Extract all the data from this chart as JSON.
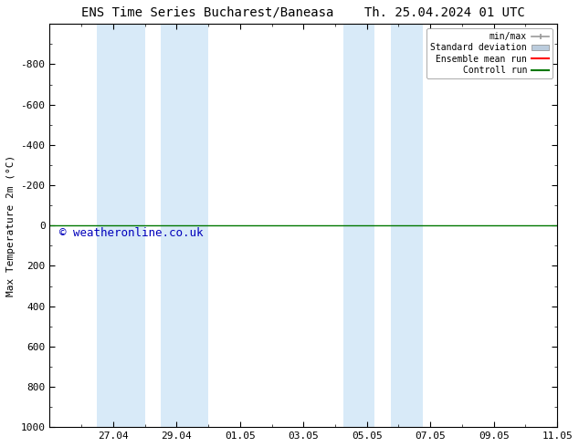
{
  "title_left": "ENS Time Series Bucharest/Baneasa",
  "title_right": "Th. 25.04.2024 01 UTC",
  "ylabel": "Max Temperature 2m (°C)",
  "watermark": "© weatheronline.co.uk",
  "ylim_top": -1000,
  "ylim_bottom": 1000,
  "yticks": [
    -800,
    -600,
    -400,
    -200,
    0,
    200,
    400,
    600,
    800,
    1000
  ],
  "xtick_labels": [
    "27.04",
    "29.04",
    "01.05",
    "03.05",
    "05.05",
    "07.05",
    "09.05",
    "11.05"
  ],
  "xtick_positions": [
    2,
    4,
    6,
    8,
    10,
    12,
    14,
    16
  ],
  "x_min": 0.0,
  "x_max": 16.0,
  "shaded_bands": [
    [
      1.5,
      3.0
    ],
    [
      3.5,
      5.0
    ],
    [
      9.25,
      10.25
    ],
    [
      10.75,
      11.75
    ]
  ],
  "horizontal_line_y": 0,
  "line_color_control": "#007700",
  "background_color": "#ffffff",
  "shade_color": "#d8eaf8",
  "legend_labels": [
    "min/max",
    "Standard deviation",
    "Ensemble mean run",
    "Controll run"
  ],
  "legend_colors": [
    "#999999",
    "#bbccdd",
    "#ff0000",
    "#007700"
  ],
  "title_fontsize": 10,
  "axis_fontsize": 8,
  "watermark_color": "#0000bb",
  "watermark_fontsize": 9
}
